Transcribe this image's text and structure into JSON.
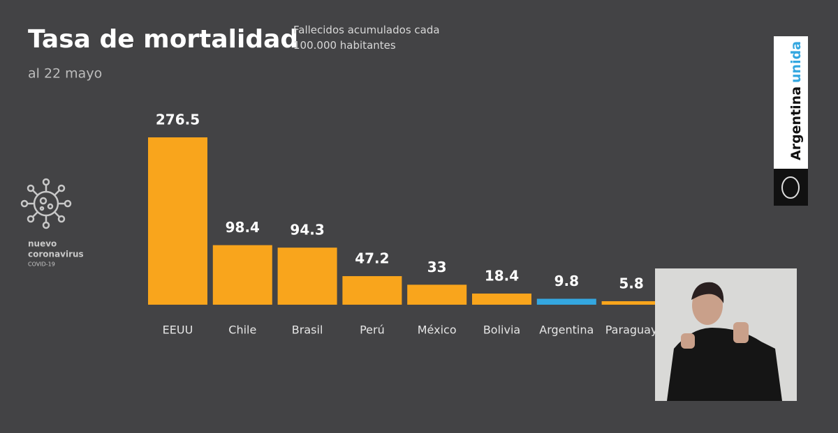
{
  "chart_data": {
    "type": "bar",
    "title": "Tasa de mortalidad",
    "subtitle": "Fallecidos acumulados cada 100.000 habitantes",
    "date": "al 22 mayo",
    "categories": [
      "EEUU",
      "Chile",
      "Brasil",
      "Perú",
      "México",
      "Bolivia",
      "Argentina",
      "Paraguay"
    ],
    "values": [
      276.5,
      98.4,
      94.3,
      47.2,
      33,
      18.4,
      9.8,
      5.8
    ],
    "colors": [
      "#f9a51c",
      "#f9a51c",
      "#f9a51c",
      "#f9a51c",
      "#f9a51c",
      "#f9a51c",
      "#34a7e0",
      "#f9a51c"
    ]
  },
  "branding": {
    "logo_line1": "nuevo",
    "logo_line2": "coronavirus",
    "logo_line3": "COVID-19",
    "side_word1": "Argentina",
    "side_word2": "unida"
  }
}
